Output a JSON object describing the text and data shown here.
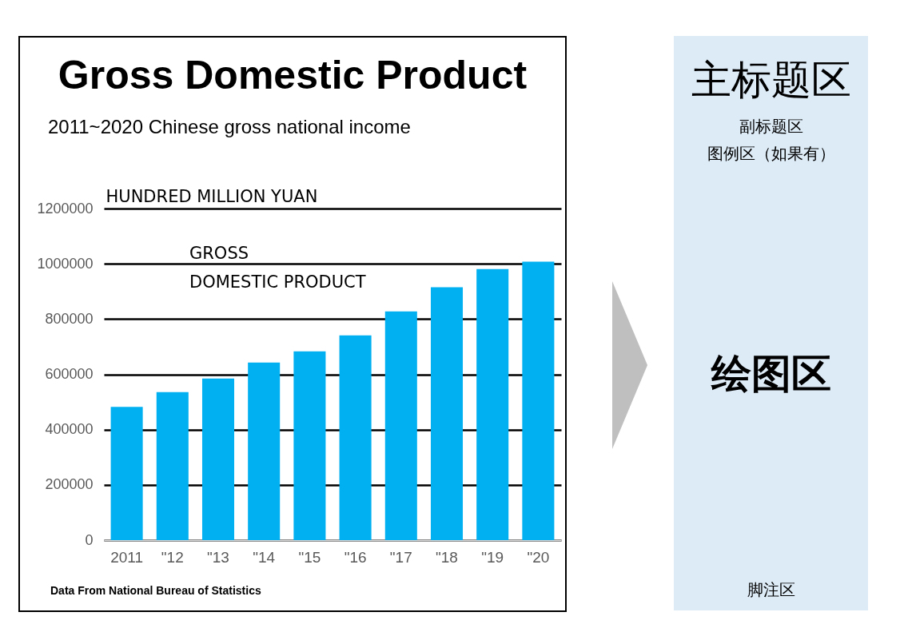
{
  "chart_data": [
    {
      "type": "bar",
      "title": "Gross Domestic Product",
      "subtitle": "2011~2020 Chinese gross national income",
      "ylabel": "HUNDRED  MILLION  YUAN",
      "categories": [
        "2011",
        "\"12",
        "\"13",
        "\"14",
        "\"15",
        "\"16",
        "\"17",
        "\"18",
        "\"19",
        "\"20"
      ],
      "values": [
        482000,
        536000,
        585000,
        643000,
        683000,
        741000,
        828000,
        915000,
        981000,
        1008000
      ],
      "color": "#00b0f0",
      "ylim": [
        0,
        1200000
      ],
      "yticks": [
        0,
        200000,
        400000,
        600000,
        800000,
        1000000,
        1200000
      ],
      "grid": "y",
      "annotations": [
        "GROSS\nDOMESTIC PRODUCT",
        "Data From National Bureau of Statistics"
      ]
    },
    {
      "type": "other",
      "title": "主标题区",
      "subtitle": "副标题区",
      "annotations": [
        "图例区（如果有）",
        "绘图区",
        "脚注区"
      ]
    }
  ]
}
